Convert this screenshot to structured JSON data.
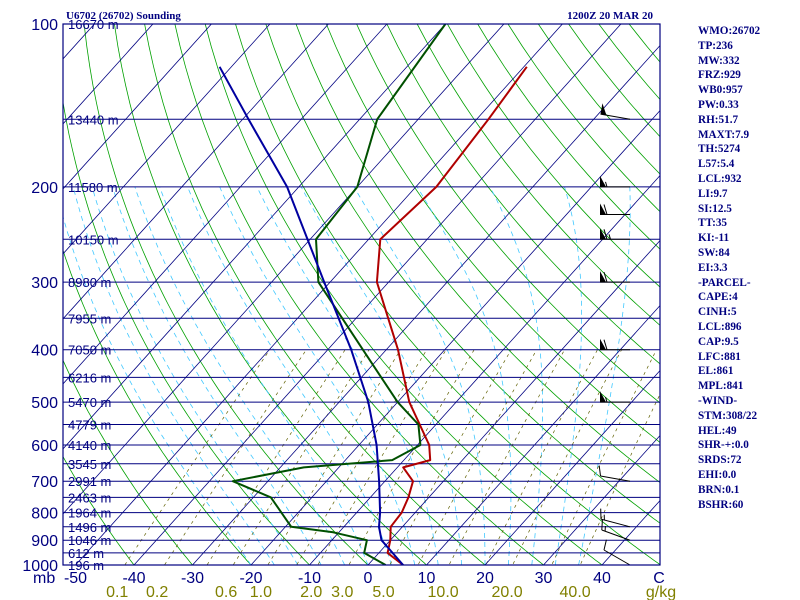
{
  "chart_data": {
    "type": "skew-t log-p sounding",
    "title_left": "U6702 (26702) Sounding",
    "title_right": "1200Z 20 MAR 20",
    "pressure_levels": [
      {
        "p": 1000,
        "label": "1000"
      },
      {
        "p": 900,
        "label": "900"
      },
      {
        "p": 800,
        "label": "800"
      },
      {
        "p": 700,
        "label": "700"
      },
      {
        "p": 600,
        "label": "600"
      },
      {
        "p": 500,
        "label": "500"
      },
      {
        "p": 400,
        "label": "400"
      },
      {
        "p": 300,
        "label": "300"
      },
      {
        "p": 200,
        "label": "200"
      },
      {
        "p": 100,
        "label": "100"
      }
    ],
    "height_levels": [
      {
        "p": 100,
        "label": "16670 m"
      },
      {
        "p": 150,
        "label": "13440 m"
      },
      {
        "p": 200,
        "label": "11580 m"
      },
      {
        "p": 250,
        "label": "10150 m"
      },
      {
        "p": 300,
        "label": "8980 m"
      },
      {
        "p": 350,
        "label": "7955 m"
      },
      {
        "p": 400,
        "label": "7050 m"
      },
      {
        "p": 450,
        "label": "6216 m"
      },
      {
        "p": 500,
        "label": "5470 m"
      },
      {
        "p": 550,
        "label": "4779 m"
      },
      {
        "p": 600,
        "label": "4140 m"
      },
      {
        "p": 650,
        "label": "3545 m"
      },
      {
        "p": 700,
        "label": "2991 m"
      },
      {
        "p": 750,
        "label": "2463 m"
      },
      {
        "p": 800,
        "label": "1964 m"
      },
      {
        "p": 850,
        "label": "1496 m"
      },
      {
        "p": 900,
        "label": "1046 m"
      },
      {
        "p": 950,
        "label": "612 m"
      },
      {
        "p": 1000,
        "label": "196 m"
      }
    ],
    "temp_axis": {
      "unit_label": "C",
      "pressure_label": "mb",
      "ticks": [
        -50,
        -40,
        -30,
        -20,
        -10,
        0,
        10,
        20,
        30,
        40
      ]
    },
    "mixing_ratio_axis": {
      "unit_label": "g/kg",
      "ticks": [
        0.1,
        0.2,
        0.6,
        1.0,
        2.0,
        3.0,
        5.0,
        10.0,
        20.0,
        40.0
      ]
    },
    "series": [
      {
        "color": "#b00000",
        "points": [
          {
            "p": 1000,
            "t": 6.0
          },
          {
            "p": 950,
            "t": 1.5
          },
          {
            "p": 900,
            "t": 0.0
          },
          {
            "p": 850,
            "t": -2.0
          },
          {
            "p": 800,
            "t": -2.3
          },
          {
            "p": 750,
            "t": -3.5
          },
          {
            "p": 700,
            "t": -5.2
          },
          {
            "p": 660,
            "t": -9.0
          },
          {
            "p": 640,
            "t": -5.5
          },
          {
            "p": 600,
            "t": -8.0
          },
          {
            "p": 500,
            "t": -18.0
          },
          {
            "p": 400,
            "t": -28.0
          },
          {
            "p": 300,
            "t": -42.0
          },
          {
            "p": 250,
            "t": -48.0
          },
          {
            "p": 200,
            "t": -46.5
          },
          {
            "p": 150,
            "t": -48.0
          },
          {
            "p": 120,
            "t": -49.5
          }
        ]
      },
      {
        "color": "#005000",
        "points": [
          {
            "p": 1000,
            "t": 3.0
          },
          {
            "p": 950,
            "t": -2.5
          },
          {
            "p": 900,
            "t": -4.0
          },
          {
            "p": 870,
            "t": -11.0
          },
          {
            "p": 850,
            "t": -19.0
          },
          {
            "p": 750,
            "t": -27.0
          },
          {
            "p": 700,
            "t": -36.0
          },
          {
            "p": 660,
            "t": -26.0
          },
          {
            "p": 640,
            "t": -12.0
          },
          {
            "p": 600,
            "t": -9.5
          },
          {
            "p": 550,
            "t": -13.0
          },
          {
            "p": 500,
            "t": -20.0
          },
          {
            "p": 400,
            "t": -34.0
          },
          {
            "p": 300,
            "t": -52.0
          },
          {
            "p": 250,
            "t": -59.0
          },
          {
            "p": 200,
            "t": -60.0
          },
          {
            "p": 150,
            "t": -67.0
          },
          {
            "p": 100,
            "t": -70.0
          }
        ]
      },
      {
        "color": "#0000a0",
        "points": [
          {
            "p": 1000,
            "t": 6.0
          },
          {
            "p": 900,
            "t": -1.5
          },
          {
            "p": 850,
            "t": -4.0
          },
          {
            "p": 800,
            "t": -6.0
          },
          {
            "p": 700,
            "t": -11.0
          },
          {
            "p": 600,
            "t": -17.0
          },
          {
            "p": 500,
            "t": -25.0
          },
          {
            "p": 400,
            "t": -36.0
          },
          {
            "p": 300,
            "t": -51.0
          },
          {
            "p": 200,
            "t": -72.0
          },
          {
            "p": 150,
            "t": -89.0
          },
          {
            "p": 120,
            "t": -102.0
          }
        ]
      }
    ],
    "winds": [
      {
        "p": 1000,
        "dir": 300,
        "spd": 10
      },
      {
        "p": 900,
        "dir": 290,
        "spd": 15
      },
      {
        "p": 850,
        "dir": 285,
        "spd": 15
      },
      {
        "p": 700,
        "dir": 280,
        "spd": 10
      },
      {
        "p": 500,
        "dir": 270,
        "spd": 55
      },
      {
        "p": 400,
        "dir": 270,
        "spd": 60
      },
      {
        "p": 300,
        "dir": 270,
        "spd": 60
      },
      {
        "p": 250,
        "dir": 270,
        "spd": 65
      },
      {
        "p": 225,
        "dir": 270,
        "spd": 60
      },
      {
        "p": 200,
        "dir": 270,
        "spd": 55
      },
      {
        "p": 150,
        "dir": 280,
        "spd": 50
      }
    ],
    "grid": true
  },
  "indices": [
    "WMO:26702",
    "TP:236",
    "MW:332",
    "FRZ:929",
    "WB0:957",
    "PW:0.33",
    "RH:51.7",
    "MAXT:7.9",
    "TH:5274",
    "L57:5.4",
    "LCL:932",
    "LI:9.7",
    "SI:12.5",
    "TT:35",
    "KI:-11",
    "SW:84",
    "EI:3.3",
    "-PARCEL-",
    "CAPE:4",
    "CINH:5",
    "LCL:896",
    "CAP:9.5",
    "LFC:881",
    "EL:861",
    "MPL:841",
    "-WIND-",
    "STM:308/22",
    "HEL:49",
    "SHR-+:0.0",
    "SRDS:72",
    "EHI:0.0",
    "BRN:0.1",
    "BSHR:60"
  ],
  "colors": {
    "frame": "#000080",
    "isobar": "#000080",
    "isotherm": "#000080",
    "dry_adiabat": "#00a000",
    "moist_adiabat": "#40c8ff",
    "mixing_ratio": "#606000",
    "background": "#ffffff"
  }
}
